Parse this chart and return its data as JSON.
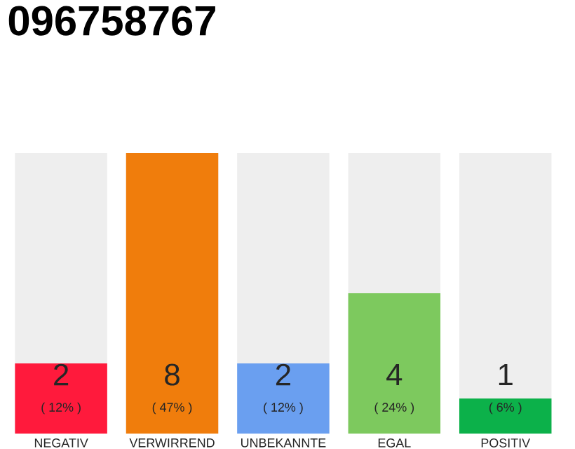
{
  "chart_data": {
    "type": "bar",
    "title": "096758767",
    "categories": [
      "NEGATIV",
      "VERWIRREND",
      "UNBEKANNTE",
      "EGAL",
      "POSITIV"
    ],
    "values": [
      2,
      8,
      2,
      4,
      1
    ],
    "colors": [
      "#ff1a3c",
      "#f07d0c",
      "#6a9ff0",
      "#7dc95e",
      "#0cb14a"
    ],
    "ylim": [
      0,
      8
    ],
    "tick_labels": "x",
    "data_labels": true,
    "annotations": [
      "( 12% )",
      "( 47% )",
      "( 12% )",
      "( 24% )",
      "( 6% )"
    ]
  }
}
